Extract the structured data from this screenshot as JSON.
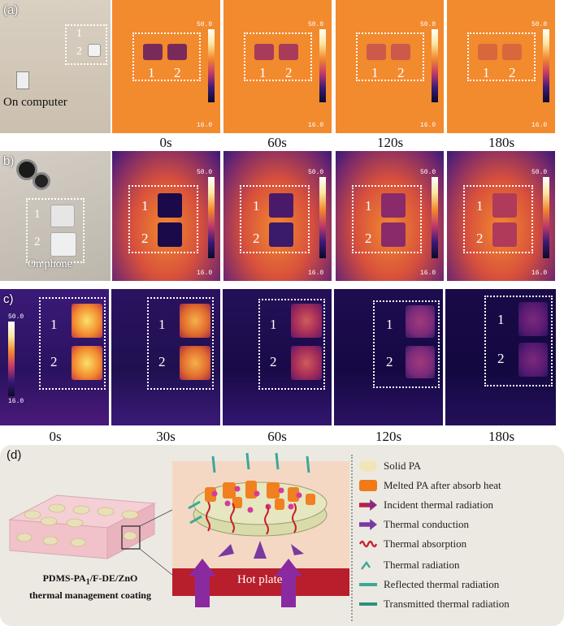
{
  "panels": {
    "a": {
      "label": "(a)",
      "photo_caption": "On computer",
      "times": [
        "0s",
        "60s",
        "120s",
        "180s"
      ],
      "scale_max": "50.0",
      "scale_min": "16.0",
      "sample1": "1",
      "sample2": "2"
    },
    "b": {
      "label": "b)",
      "photo_caption": "On phone",
      "times": [],
      "scale_max": "50.0",
      "scale_min": "16.0",
      "sample1": "1",
      "sample2": "2"
    },
    "c": {
      "label": "c)",
      "times": [
        "0s",
        "30s",
        "60s",
        "120s",
        "180s"
      ],
      "scale_max": "50.0",
      "scale_min": "16.0",
      "sample1": "1",
      "sample2": "2"
    },
    "d": {
      "label": "(d)",
      "coating_line1": "PDMS-PA",
      "coating_sub1": "1",
      "coating_mid": "/F-DE/ZnO",
      "coating_line2": "thermal management coating",
      "hot_plate": "Hot plate",
      "legend": [
        "Solid PA",
        "Melted PA after absorb heat",
        "Incident thermal radiation",
        "Thermal conduction",
        "Thermal absorption",
        "Thermal radiation",
        "Reflected thermal radiation",
        "Transmitted thermal radiation"
      ]
    }
  },
  "colors": {
    "warm": "#f28a2e",
    "cool": "#3a1a78",
    "dark": "#140a3a",
    "hot": "#b81e2b",
    "legend_bg": "#ece9e2"
  }
}
